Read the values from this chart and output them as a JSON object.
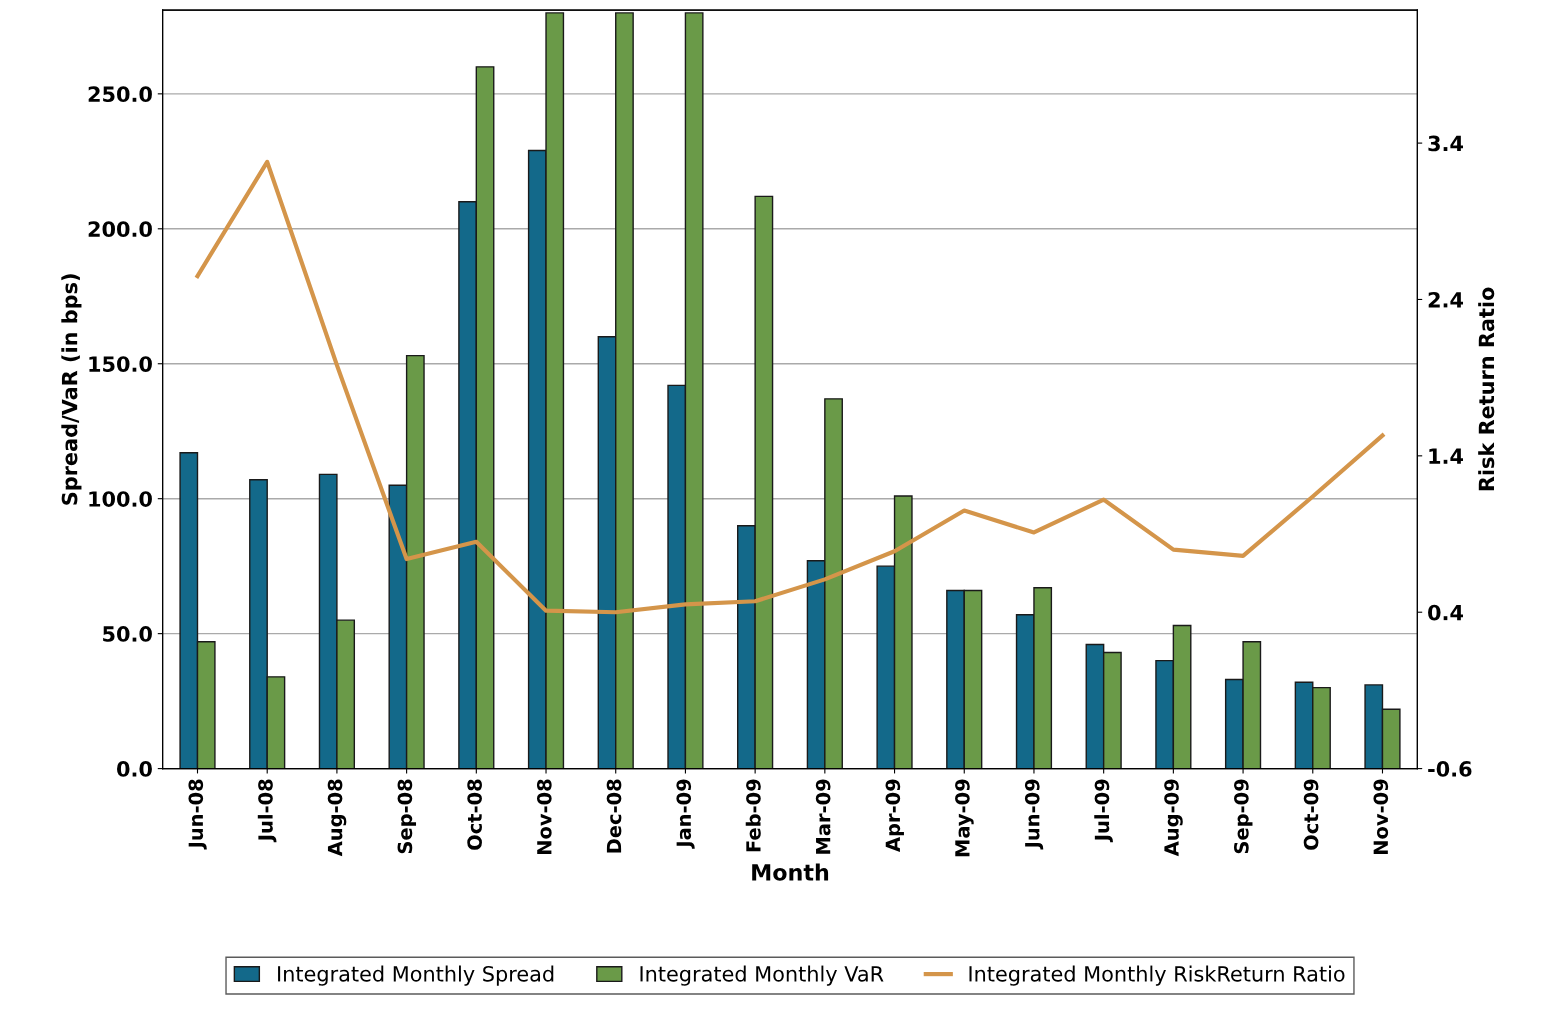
{
  "chart_data": {
    "type": "bar",
    "xlabel": "Month",
    "ylabel": "Spread/VaR (in bps)",
    "y2label": "Risk Return Ratio",
    "categories": [
      "Jun-08",
      "Jul-08",
      "Aug-08",
      "Sep-08",
      "Oct-08",
      "Nov-08",
      "Dec-08",
      "Jan-09",
      "Feb-09",
      "Mar-09",
      "Apr-09",
      "May-09",
      "Jun-09",
      "Jul-09",
      "Aug-09",
      "Sep-09",
      "Oct-09",
      "Nov-09"
    ],
    "series": [
      {
        "name": "Integrated Monthly Spread",
        "color": "#13698a",
        "values": [
          117,
          107,
          109,
          105,
          210,
          229,
          160,
          142,
          90,
          77,
          75,
          66,
          57,
          46,
          40,
          33,
          32,
          31
        ]
      },
      {
        "name": "Integrated Monthly VaR",
        "color": "#6a9a48",
        "values": [
          47,
          34,
          55,
          153,
          260,
          280,
          280,
          280,
          212,
          137,
          101,
          66,
          67,
          43,
          53,
          47,
          30,
          22
        ]
      },
      {
        "name": "Integrated Monthly RiskReturn Ratio",
        "type": "line",
        "axis": "y2",
        "color": "#d4954a",
        "values": [
          2.55,
          3.28,
          1.98,
          0.74,
          0.85,
          0.41,
          0.4,
          0.45,
          0.47,
          0.61,
          0.79,
          1.05,
          0.91,
          1.12,
          0.8,
          0.76,
          1.14,
          1.53
        ]
      }
    ],
    "ylim": [
      0,
      281
    ],
    "yticks": [
      {
        "value": 0,
        "label": "0.0"
      },
      {
        "value": 50,
        "label": "50.0"
      },
      {
        "value": 100,
        "label": "100.0"
      },
      {
        "value": 150,
        "label": "150.0"
      },
      {
        "value": 200,
        "label": "200.0"
      },
      {
        "value": 250,
        "label": "250.0"
      }
    ],
    "y2lim": [
      -0.6,
      4.25
    ],
    "y2ticks": [
      -0.6,
      0.4,
      1.4,
      2.4,
      3.4
    ],
    "grid": "y",
    "legend": "bottom",
    "marker": "none",
    "line_style": "solid"
  }
}
